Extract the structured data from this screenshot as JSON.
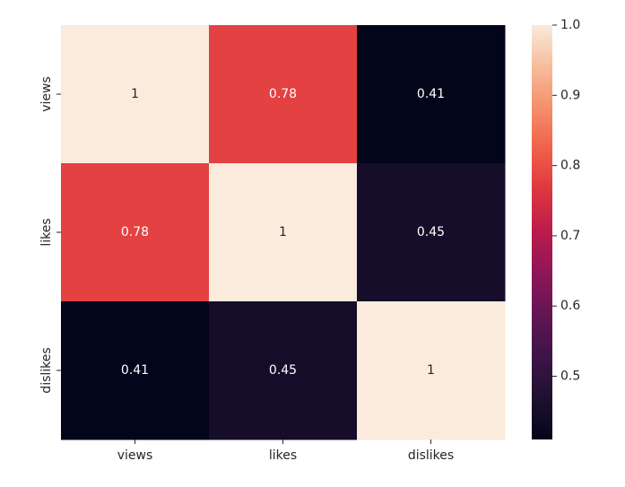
{
  "chart_data": {
    "type": "heatmap",
    "title": "",
    "xlabel": "",
    "ylabel": "",
    "x_categories": [
      "views",
      "likes",
      "dislikes"
    ],
    "y_categories": [
      "views",
      "likes",
      "dislikes"
    ],
    "values": [
      [
        1,
        0.78,
        0.41
      ],
      [
        0.78,
        1,
        0.45
      ],
      [
        0.41,
        0.45,
        1
      ]
    ],
    "cell_labels": [
      [
        "1",
        "0.78",
        "0.41"
      ],
      [
        "0.78",
        "1",
        "0.45"
      ],
      [
        "0.41",
        "0.45",
        "1"
      ]
    ],
    "colorscale": "rocket",
    "colorbar": {
      "range": [
        0.41,
        1.0
      ],
      "ticks": [
        0.5,
        0.6,
        0.7,
        0.8,
        0.9,
        1.0
      ],
      "tick_labels": [
        "0.5",
        "0.6",
        "0.7",
        "0.8",
        "0.9",
        "1.0"
      ]
    },
    "grid": false
  }
}
